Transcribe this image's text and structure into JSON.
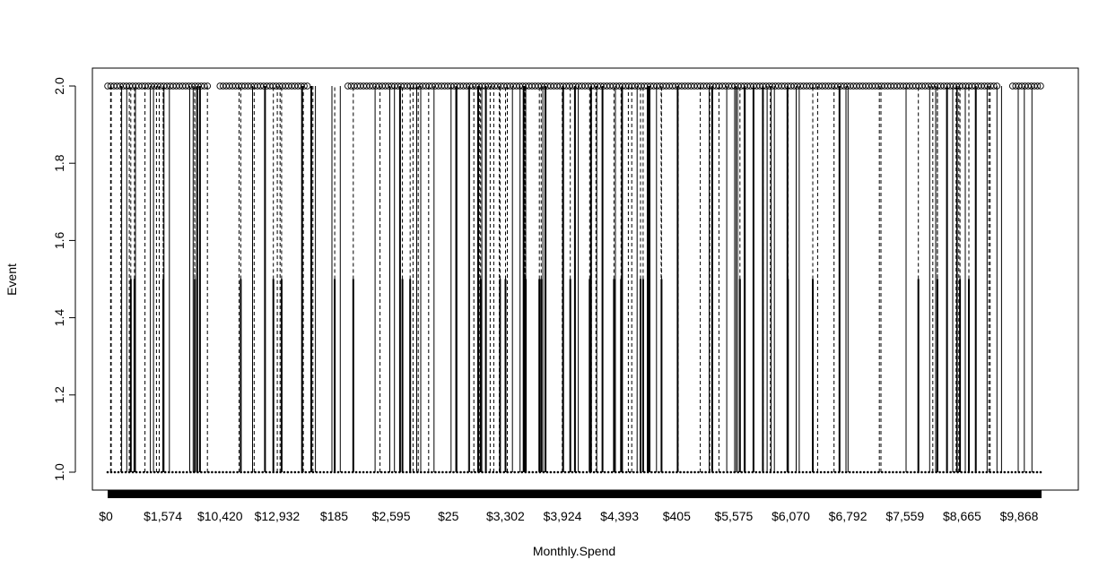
{
  "chart_data": {
    "type": "line",
    "title": "",
    "xlabel": "Monthly.Spend",
    "ylabel": "Event",
    "ylim": [
      1.0,
      2.0
    ],
    "y_ticks": [
      "1.0",
      "1.2",
      "1.4",
      "1.6",
      "1.8",
      "2.0"
    ],
    "x_tick_labels": [
      "$0",
      "$1,574",
      "$10,420",
      "$12,932",
      "$185",
      "$2,595",
      "$25",
      "$3,302",
      "$3,924",
      "$4,393",
      "$405",
      "$5,575",
      "$6,070",
      "$6,792",
      "$7,559",
      "$8,665",
      "$9,868"
    ],
    "x_is_categorical": true,
    "grid": false,
    "legend": "none",
    "series": [
      {
        "style": "points at y = 1.0 (filled dots) and y = 2.0 (open circles), joined by solid and dashed vertical segments",
        "values_low": 1.0,
        "values_high": 2.0,
        "mid_value": 1.5
      }
    ]
  }
}
